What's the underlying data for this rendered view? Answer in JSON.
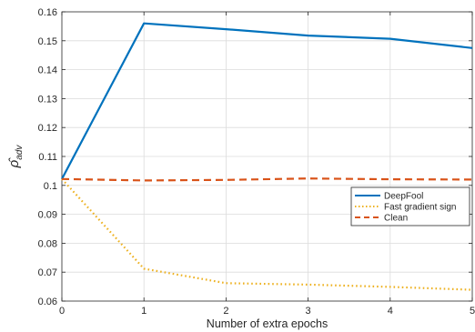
{
  "chart_data": {
    "type": "line",
    "title": "",
    "xlabel": "Number of extra epochs",
    "ylabel_base": "ρ̂",
    "ylabel_sub": "adv",
    "x": [
      0,
      1,
      2,
      3,
      4,
      5
    ],
    "xlim": [
      0,
      5
    ],
    "ylim": [
      0.06,
      0.16
    ],
    "xticks": [
      "0",
      "1",
      "2",
      "3",
      "4",
      "5"
    ],
    "yticks": [
      "0.06",
      "0.07",
      "0.08",
      "0.09",
      "0.1",
      "0.11",
      "0.12",
      "0.13",
      "0.14",
      "0.15",
      "0.16"
    ],
    "grid": true,
    "legend_position": "right",
    "series": [
      {
        "name": "DeepFool",
        "values": [
          0.1022,
          0.156,
          0.154,
          0.1518,
          0.1507,
          0.1475
        ],
        "color": "#0072bd",
        "style": "solid"
      },
      {
        "name": "Fast gradient sign",
        "values": [
          0.1022,
          0.0712,
          0.0662,
          0.0657,
          0.0649,
          0.0639
        ],
        "color": "#edb120",
        "style": "dotted"
      },
      {
        "name": "Clean",
        "values": [
          0.1022,
          0.1017,
          0.1019,
          0.1024,
          0.1021,
          0.102
        ],
        "color": "#d95319",
        "style": "dashed"
      }
    ]
  }
}
